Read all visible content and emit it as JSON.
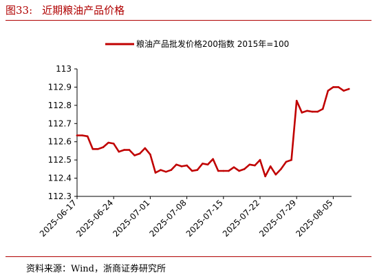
{
  "figure": {
    "number": "图33:",
    "title": "近期粮油产品价格",
    "source": "资料来源：Wind，浙商证券研究所"
  },
  "chart_data": {
    "type": "line",
    "title": "",
    "xlabel": "",
    "ylabel": "",
    "ylim": [
      112.3,
      113.0
    ],
    "yticks": [
      "112.3",
      "112.4",
      "112.5",
      "112.6",
      "112.7",
      "112.8",
      "112.9",
      "113"
    ],
    "xtick_labels": [
      "2025-06-17",
      "2025-06-24",
      "2025-07-01",
      "2025-07-08",
      "2025-07-15",
      "2025-07-22",
      "2025-07-29",
      "2025-08-05"
    ],
    "grid": false,
    "legend_position": "top",
    "series": [
      {
        "name": "粮油产品批发价格200指数 2015年=100",
        "color": "#c00000",
        "points": [
          [
            "2025-06-17",
            112.635
          ],
          [
            "2025-06-18",
            112.635
          ],
          [
            "2025-06-19",
            112.63
          ],
          [
            "2025-06-20",
            112.56
          ],
          [
            "2025-06-21",
            112.56
          ],
          [
            "2025-06-22",
            112.57
          ],
          [
            "2025-06-23",
            112.595
          ],
          [
            "2025-06-24",
            112.59
          ],
          [
            "2025-06-25",
            112.545
          ],
          [
            "2025-06-26",
            112.555
          ],
          [
            "2025-06-27",
            112.555
          ],
          [
            "2025-06-28",
            112.525
          ],
          [
            "2025-06-29",
            112.535
          ],
          [
            "2025-06-30",
            112.565
          ],
          [
            "2025-07-01",
            112.53
          ],
          [
            "2025-07-02",
            112.43
          ],
          [
            "2025-07-03",
            112.445
          ],
          [
            "2025-07-04",
            112.435
          ],
          [
            "2025-07-05",
            112.445
          ],
          [
            "2025-07-06",
            112.475
          ],
          [
            "2025-07-07",
            112.465
          ],
          [
            "2025-07-08",
            112.47
          ],
          [
            "2025-07-09",
            112.44
          ],
          [
            "2025-07-10",
            112.445
          ],
          [
            "2025-07-11",
            112.48
          ],
          [
            "2025-07-12",
            112.475
          ],
          [
            "2025-07-13",
            112.505
          ],
          [
            "2025-07-14",
            112.44
          ],
          [
            "2025-07-15",
            112.44
          ],
          [
            "2025-07-16",
            112.44
          ],
          [
            "2025-07-17",
            112.46
          ],
          [
            "2025-07-18",
            112.44
          ],
          [
            "2025-07-19",
            112.45
          ],
          [
            "2025-07-20",
            112.475
          ],
          [
            "2025-07-21",
            112.47
          ],
          [
            "2025-07-22",
            112.5
          ],
          [
            "2025-07-23",
            112.41
          ],
          [
            "2025-07-24",
            112.465
          ],
          [
            "2025-07-25",
            112.42
          ],
          [
            "2025-07-26",
            112.45
          ],
          [
            "2025-07-27",
            112.49
          ],
          [
            "2025-07-28",
            112.5
          ],
          [
            "2025-07-29",
            112.825
          ],
          [
            "2025-07-30",
            112.76
          ],
          [
            "2025-07-31",
            112.77
          ],
          [
            "2025-08-01",
            112.765
          ],
          [
            "2025-08-02",
            112.765
          ],
          [
            "2025-08-03",
            112.78
          ],
          [
            "2025-08-04",
            112.88
          ],
          [
            "2025-08-05",
            112.9
          ],
          [
            "2025-08-06",
            112.9
          ],
          [
            "2025-08-07",
            112.88
          ],
          [
            "2025-08-08",
            112.89
          ]
        ]
      }
    ]
  }
}
